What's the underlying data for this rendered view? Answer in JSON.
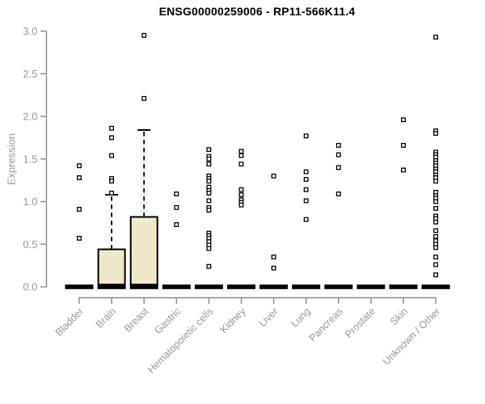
{
  "chart_data": {
    "type": "box",
    "title": "ENSG00000259006 - RP11-566K11.4",
    "ylabel": "Expression",
    "xlabel": "",
    "ylim": [
      0.0,
      3.0
    ],
    "yticks": [
      0.0,
      0.5,
      1.0,
      1.5,
      2.0,
      2.5,
      3.0
    ],
    "grid": false,
    "legend": null,
    "categories": [
      "Bladder",
      "Brain",
      "Breast",
      "Gastric",
      "Hematopoietic cells",
      "Kidney",
      "Liver",
      "Lung",
      "Pancreas",
      "Prostate",
      "Skin",
      "Unknown / Other"
    ],
    "boxes": [
      {
        "category": "Bladder",
        "median": 0,
        "q1": 0,
        "q3": 0,
        "whisker_low": 0,
        "whisker_high": 0,
        "outliers": [
          1.42,
          1.28,
          0.91,
          0.57
        ]
      },
      {
        "category": "Brain",
        "median": 0,
        "q1": 0,
        "q3": 0.44,
        "whisker_low": 0,
        "whisker_high": 1.08,
        "outliers": [
          1.86,
          1.75,
          1.54,
          1.27,
          1.24,
          1.1
        ]
      },
      {
        "category": "Breast",
        "median": 0,
        "q1": 0,
        "q3": 0.82,
        "whisker_low": 0,
        "whisker_high": 1.84,
        "outliers": [
          2.95,
          2.21
        ]
      },
      {
        "category": "Gastric",
        "median": 0,
        "q1": 0,
        "q3": 0,
        "whisker_low": 0,
        "whisker_high": 0,
        "outliers": [
          1.09,
          0.93,
          0.73
        ]
      },
      {
        "category": "Hematopoietic cells",
        "median": 0,
        "q1": 0,
        "q3": 0,
        "whisker_low": 0,
        "whisker_high": 0,
        "outliers": [
          1.61,
          1.53,
          1.5,
          1.44,
          1.3,
          1.27,
          1.24,
          1.17,
          1.13,
          1.1,
          1.01,
          0.93,
          0.9,
          0.63,
          0.6,
          0.57,
          0.53,
          0.49,
          0.45,
          0.24
        ]
      },
      {
        "category": "Kidney",
        "median": 0,
        "q1": 0,
        "q3": 0,
        "whisker_low": 0,
        "whisker_high": 0,
        "outliers": [
          1.59,
          1.54,
          1.44,
          1.14,
          1.08,
          1.02,
          0.99,
          0.96
        ]
      },
      {
        "category": "Liver",
        "median": 0,
        "q1": 0,
        "q3": 0,
        "whisker_low": 0,
        "whisker_high": 0,
        "outliers": [
          1.3,
          0.35,
          0.22
        ]
      },
      {
        "category": "Lung",
        "median": 0,
        "q1": 0,
        "q3": 0,
        "whisker_low": 0,
        "whisker_high": 0,
        "outliers": [
          1.77,
          1.35,
          1.26,
          1.14,
          1.01,
          0.79
        ]
      },
      {
        "category": "Pancreas",
        "median": 0,
        "q1": 0,
        "q3": 0,
        "whisker_low": 0,
        "whisker_high": 0,
        "outliers": [
          1.66,
          1.55,
          1.4,
          1.09
        ]
      },
      {
        "category": "Prostate",
        "median": 0,
        "q1": 0,
        "q3": 0,
        "whisker_low": 0,
        "whisker_high": 0,
        "outliers": []
      },
      {
        "category": "Skin",
        "median": 0,
        "q1": 0,
        "q3": 0,
        "whisker_low": 0,
        "whisker_high": 0,
        "outliers": [
          1.96,
          1.66,
          1.37
        ]
      },
      {
        "category": "Unknown / Other",
        "median": 0,
        "q1": 0,
        "q3": 0,
        "whisker_low": 0,
        "whisker_high": 0,
        "outliers": [
          2.93,
          1.83,
          1.8,
          1.58,
          1.55,
          1.52,
          1.48,
          1.45,
          1.42,
          1.38,
          1.35,
          1.31,
          1.28,
          1.24,
          1.11,
          1.07,
          1.04,
          1.0,
          0.92,
          0.83,
          0.8,
          0.76,
          0.66,
          0.59,
          0.54,
          0.5,
          0.46,
          0.35,
          0.26,
          0.14
        ]
      }
    ],
    "colors": {
      "box_fill": "#efe8cc",
      "box_border": "#000000",
      "median": "#000000",
      "whisker": "#000000",
      "outlier_stroke": "#000000",
      "outlier_fill": "#ffffff",
      "axis": "#8a8a8a",
      "tick_label": "#989898",
      "title": "#000000",
      "background": "#ffffff"
    }
  }
}
